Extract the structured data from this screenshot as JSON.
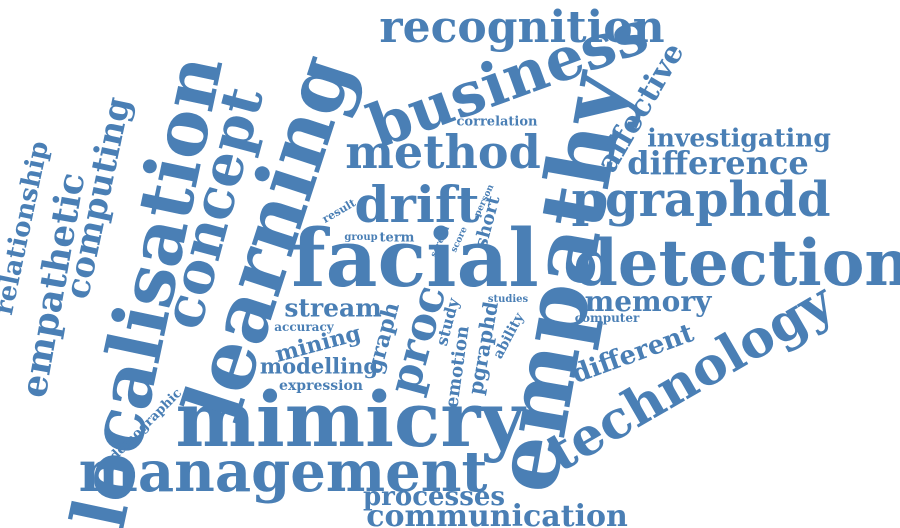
{
  "colors": {
    "word": "#4a7fb5",
    "background": "#ffffff"
  },
  "words": [
    "recognition",
    "business",
    "localisation",
    "concept",
    "learning",
    "empathy",
    "facial",
    "detection",
    "mimicry",
    "management",
    "technology",
    "method",
    "drift",
    "pgraphdd",
    "affective",
    "investigating",
    "difference",
    "computing",
    "empathetic",
    "relationship",
    "memory",
    "stream",
    "mining",
    "modelling",
    "expression",
    "accuracy",
    "proc",
    "graph",
    "study",
    "emotion",
    "pgraphd",
    "ability",
    "studies",
    "computer",
    "different",
    "processes",
    "communication",
    "demographic",
    "correlation",
    "result",
    "group",
    "term",
    "screen",
    "score",
    "person",
    "short"
  ]
}
